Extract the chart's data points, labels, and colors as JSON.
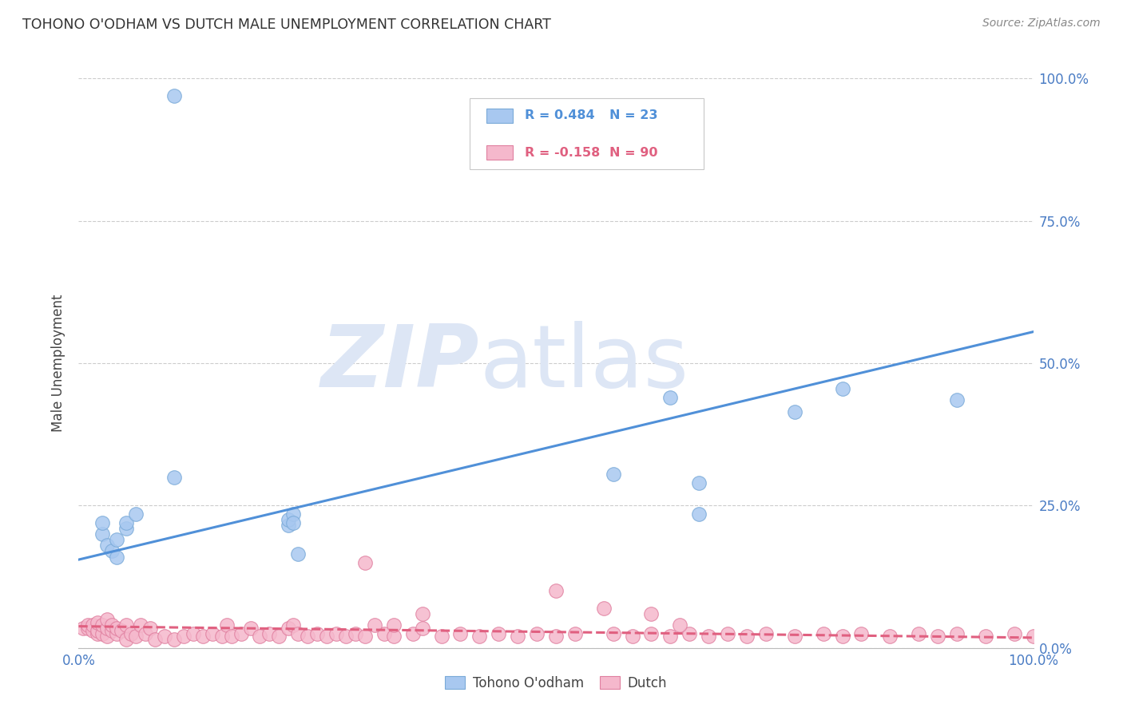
{
  "title": "TOHONO O'ODHAM VS DUTCH MALE UNEMPLOYMENT CORRELATION CHART",
  "source": "Source: ZipAtlas.com",
  "ylabel": "Male Unemployment",
  "xlim": [
    0.0,
    1.0
  ],
  "ylim": [
    0.0,
    1.0
  ],
  "xtick_labels": [
    "0.0%",
    "100.0%"
  ],
  "ytick_labels": [
    "0.0%",
    "25.0%",
    "50.0%",
    "75.0%",
    "100.0%"
  ],
  "ytick_positions": [
    0.0,
    0.25,
    0.5,
    0.75,
    1.0
  ],
  "grid_color": "#cccccc",
  "background_color": "#ffffff",
  "watermark_zip": "ZIP",
  "watermark_atlas": "atlas",
  "watermark_color": "#dde6f5",
  "legend_r1": "R = 0.484",
  "legend_n1": "N = 23",
  "legend_r2": "R = -0.158",
  "legend_n2": "N = 90",
  "tohono_color": "#a8c8f0",
  "tohono_edge_color": "#7aaad8",
  "dutch_color": "#f5b8cc",
  "dutch_edge_color": "#e080a0",
  "line1_color": "#5090d8",
  "line2_color": "#e06080",
  "title_color": "#333333",
  "axis_label_color": "#444444",
  "tick_color": "#4a7cc4",
  "tohono_x": [
    0.025,
    0.025,
    0.03,
    0.035,
    0.04,
    0.04,
    0.05,
    0.05,
    0.06,
    0.1,
    0.22,
    0.22,
    0.225,
    0.225,
    0.23,
    0.56,
    0.62,
    0.65,
    0.65,
    0.75,
    0.8,
    0.92,
    0.1
  ],
  "tohono_y": [
    0.2,
    0.22,
    0.18,
    0.17,
    0.16,
    0.19,
    0.21,
    0.22,
    0.235,
    0.97,
    0.215,
    0.225,
    0.235,
    0.22,
    0.165,
    0.305,
    0.44,
    0.29,
    0.235,
    0.415,
    0.455,
    0.435,
    0.3
  ],
  "dutch_x": [
    0.005,
    0.01,
    0.01,
    0.015,
    0.015,
    0.02,
    0.02,
    0.02,
    0.025,
    0.025,
    0.03,
    0.03,
    0.03,
    0.035,
    0.035,
    0.04,
    0.04,
    0.045,
    0.05,
    0.05,
    0.055,
    0.06,
    0.065,
    0.07,
    0.075,
    0.08,
    0.09,
    0.1,
    0.11,
    0.12,
    0.13,
    0.14,
    0.15,
    0.155,
    0.16,
    0.17,
    0.18,
    0.19,
    0.2,
    0.21,
    0.22,
    0.225,
    0.23,
    0.24,
    0.25,
    0.26,
    0.27,
    0.28,
    0.29,
    0.3,
    0.32,
    0.33,
    0.35,
    0.36,
    0.38,
    0.4,
    0.42,
    0.44,
    0.46,
    0.48,
    0.5,
    0.52,
    0.55,
    0.56,
    0.58,
    0.6,
    0.62,
    0.64,
    0.66,
    0.68,
    0.7,
    0.72,
    0.75,
    0.78,
    0.8,
    0.82,
    0.85,
    0.88,
    0.9,
    0.92,
    0.95,
    0.98,
    1.0,
    0.3,
    0.31,
    0.33,
    0.36,
    0.5,
    0.63,
    0.6
  ],
  "dutch_y": [
    0.035,
    0.035,
    0.04,
    0.03,
    0.04,
    0.025,
    0.03,
    0.045,
    0.025,
    0.04,
    0.02,
    0.035,
    0.05,
    0.03,
    0.04,
    0.025,
    0.035,
    0.03,
    0.015,
    0.04,
    0.025,
    0.02,
    0.04,
    0.025,
    0.035,
    0.015,
    0.02,
    0.015,
    0.02,
    0.025,
    0.02,
    0.025,
    0.02,
    0.04,
    0.02,
    0.025,
    0.035,
    0.02,
    0.025,
    0.02,
    0.035,
    0.04,
    0.025,
    0.02,
    0.025,
    0.02,
    0.025,
    0.02,
    0.025,
    0.02,
    0.025,
    0.02,
    0.025,
    0.035,
    0.02,
    0.025,
    0.02,
    0.025,
    0.02,
    0.025,
    0.02,
    0.025,
    0.07,
    0.025,
    0.02,
    0.025,
    0.02,
    0.025,
    0.02,
    0.025,
    0.02,
    0.025,
    0.02,
    0.025,
    0.02,
    0.025,
    0.02,
    0.025,
    0.02,
    0.025,
    0.02,
    0.025,
    0.02,
    0.15,
    0.04,
    0.04,
    0.06,
    0.1,
    0.04,
    0.06
  ],
  "line1_x0": 0.0,
  "line1_y0": 0.155,
  "line1_x1": 1.0,
  "line1_y1": 0.555,
  "line2_x0": 0.0,
  "line2_y0": 0.038,
  "line2_x1": 1.0,
  "line2_y1": 0.018
}
